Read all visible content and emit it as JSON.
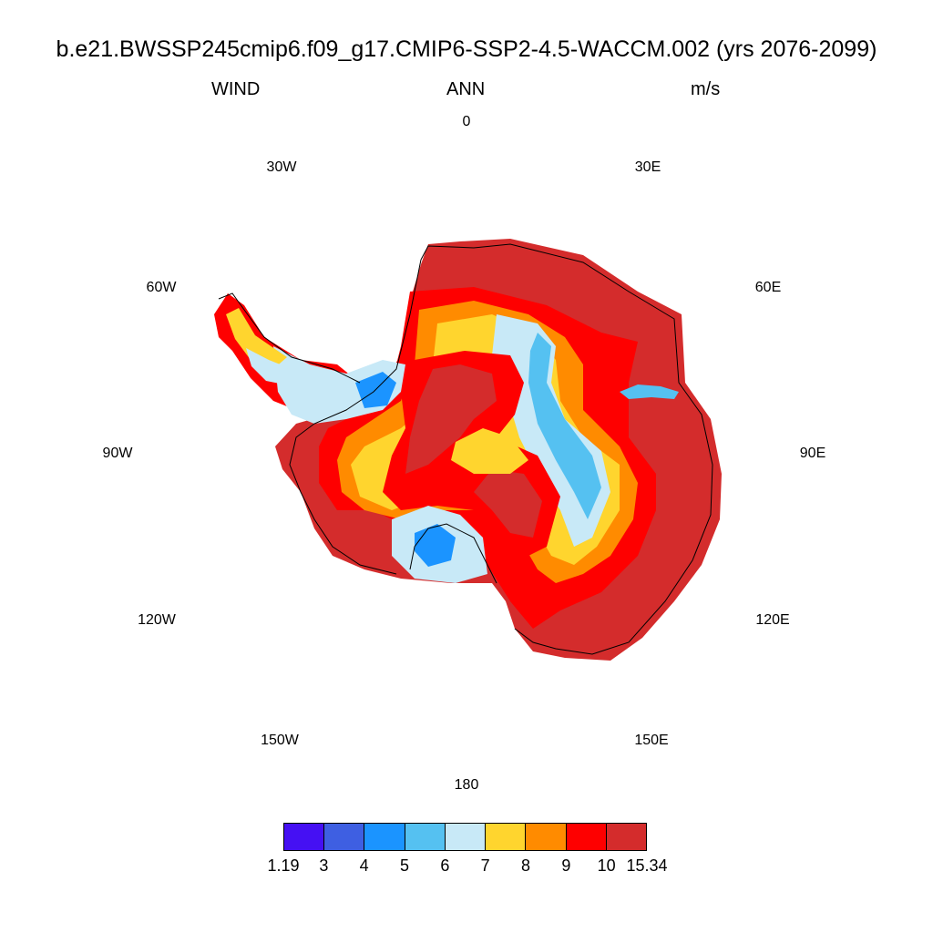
{
  "title": "b.e21.BWSSP245cmip6.f09_g17.CMIP6-SSP2-4.5-WACCM.002 (yrs 2076-2099)",
  "subtitle": {
    "left": "WIND",
    "center": "ANN",
    "right": "m/s"
  },
  "longitude_labels": [
    "0",
    "30E",
    "60E",
    "90E",
    "120E",
    "150E",
    "180",
    "150W",
    "120W",
    "90W",
    "60W",
    "30W"
  ],
  "colorbar": {
    "colors": [
      "#4510f3",
      "#3e5fe2",
      "#1b94ff",
      "#55c1f1",
      "#c8e9f7",
      "#ffd52e",
      "#ff8b00",
      "#fe0000",
      "#d42c2c"
    ],
    "labels": [
      "1.19",
      "3",
      "4",
      "5",
      "6",
      "7",
      "8",
      "9",
      "10",
      "15.34"
    ]
  },
  "map_data": {
    "type": "polar-stereographic-filled-contour",
    "region": "Antarctica",
    "variable": "WIND",
    "units": "m/s",
    "color_levels": [
      1.19,
      3,
      4,
      5,
      6,
      7,
      8,
      9,
      10,
      15.34
    ]
  }
}
